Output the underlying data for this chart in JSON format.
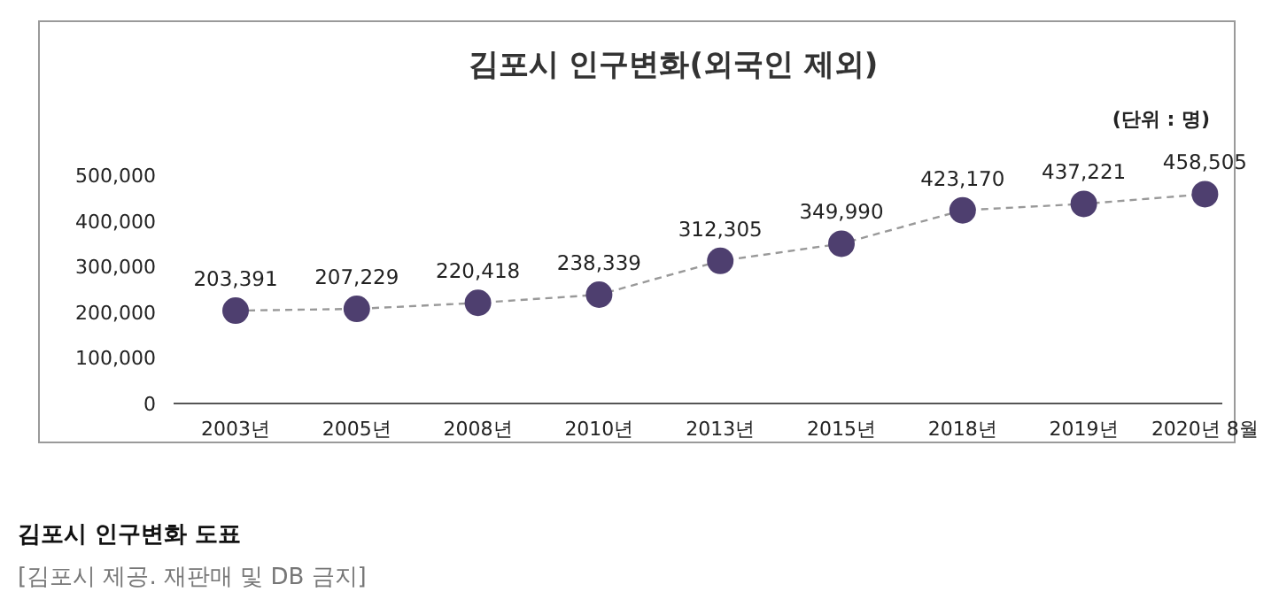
{
  "chart_data": {
    "type": "line",
    "title": "김포시 인구변화(외국인 제외)",
    "categories": [
      "2003년",
      "2005년",
      "2008년",
      "2010년",
      "2013년",
      "2015년",
      "2018년",
      "2019년",
      "2020년 8월"
    ],
    "series": [
      {
        "color": "#4e3f6f",
        "values": [
          203391,
          207229,
          220418,
          238339,
          312305,
          349990,
          423170,
          437221,
          458505
        ],
        "value_labels": [
          "203,391",
          "207,229",
          "220,418",
          "238,339",
          "312,305",
          "349,990",
          "423,170",
          "437,221",
          "458,505"
        ]
      }
    ],
    "ylim": [
      0,
      500000
    ],
    "yticks": [
      {
        "value": 0,
        "label": "0"
      },
      {
        "value": 100000,
        "label": "100,000"
      },
      {
        "value": 200000,
        "label": "200,000"
      },
      {
        "value": 300000,
        "label": "300,000"
      },
      {
        "value": 400000,
        "label": "400,000"
      },
      {
        "value": 500000,
        "label": "500,000"
      }
    ],
    "grid": false,
    "marker": "circle",
    "line_style": "dashed",
    "annotations": [
      "(단위 : 명)",
      "**김포시 인구변화 도표**",
      "[김포시 제공. 재판매 및 DB 금지]"
    ]
  }
}
